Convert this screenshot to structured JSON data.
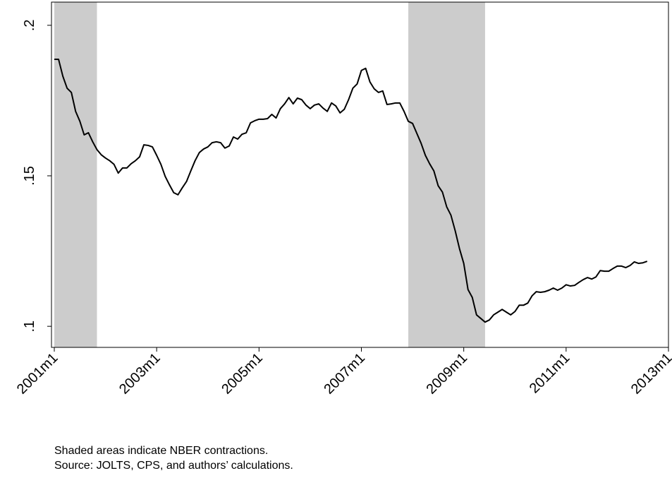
{
  "chart_data": {
    "type": "line",
    "caption": [
      "Shaded areas indicate NBER contractions.",
      "Source: JOLTS, CPS, and authors’ calculations."
    ],
    "recessions": [
      {
        "start": "2001m1",
        "end": "2001m11"
      },
      {
        "start": "2007m12",
        "end": "2009m6"
      }
    ],
    "x": [
      "2001m1",
      "2001m2",
      "2001m3",
      "2001m4",
      "2001m5",
      "2001m6",
      "2001m7",
      "2001m8",
      "2001m9",
      "2001m10",
      "2001m11",
      "2001m12",
      "2002m1",
      "2002m2",
      "2002m3",
      "2002m4",
      "2002m5",
      "2002m6",
      "2002m7",
      "2002m8",
      "2002m9",
      "2002m10",
      "2002m11",
      "2002m12",
      "2003m1",
      "2003m2",
      "2003m3",
      "2003m4",
      "2003m5",
      "2003m6",
      "2003m7",
      "2003m8",
      "2003m9",
      "2003m10",
      "2003m11",
      "2003m12",
      "2004m1",
      "2004m2",
      "2004m3",
      "2004m4",
      "2004m5",
      "2004m6",
      "2004m7",
      "2004m8",
      "2004m9",
      "2004m10",
      "2004m11",
      "2004m12",
      "2005m1",
      "2005m2",
      "2005m3",
      "2005m4",
      "2005m5",
      "2005m6",
      "2005m7",
      "2005m8",
      "2005m9",
      "2005m10",
      "2005m11",
      "2005m12",
      "2006m1",
      "2006m2",
      "2006m3",
      "2006m4",
      "2006m5",
      "2006m6",
      "2006m7",
      "2006m8",
      "2006m9",
      "2006m10",
      "2006m11",
      "2006m12",
      "2007m1",
      "2007m2",
      "2007m3",
      "2007m4",
      "2007m5",
      "2007m6",
      "2007m7",
      "2007m8",
      "2007m9",
      "2007m10",
      "2007m11",
      "2007m12",
      "2008m1",
      "2008m2",
      "2008m3",
      "2008m4",
      "2008m5",
      "2008m6",
      "2008m7",
      "2008m8",
      "2008m9",
      "2008m10",
      "2008m11",
      "2008m12",
      "2009m1",
      "2009m2",
      "2009m3",
      "2009m4",
      "2009m5",
      "2009m6",
      "2009m7",
      "2009m8",
      "2009m9",
      "2009m10",
      "2009m11",
      "2009m12",
      "2010m1",
      "2010m2",
      "2010m3",
      "2010m4",
      "2010m5",
      "2010m6",
      "2010m7",
      "2010m8",
      "2010m9",
      "2010m10",
      "2010m11",
      "2010m12",
      "2011m1",
      "2011m2",
      "2011m3",
      "2011m4",
      "2011m5",
      "2011m6",
      "2011m7",
      "2011m8",
      "2011m9",
      "2011m10",
      "2011m11",
      "2011m12",
      "2012m1",
      "2012m2",
      "2012m3",
      "2012m4",
      "2012m5",
      "2012m6",
      "2012m7",
      "2012m8"
    ],
    "values": [
      0.1887,
      0.1887,
      0.1831,
      0.1791,
      0.1777,
      0.1714,
      0.1681,
      0.1636,
      0.1643,
      0.1613,
      0.1587,
      0.157,
      0.1559,
      0.155,
      0.1538,
      0.1509,
      0.1526,
      0.1526,
      0.154,
      0.155,
      0.1563,
      0.1603,
      0.1601,
      0.1596,
      0.1568,
      0.1538,
      0.1498,
      0.147,
      0.1444,
      0.1437,
      0.146,
      0.1481,
      0.1516,
      0.155,
      0.1577,
      0.1589,
      0.1596,
      0.161,
      0.1613,
      0.161,
      0.1592,
      0.1599,
      0.1629,
      0.1622,
      0.1638,
      0.1643,
      0.1676,
      0.1683,
      0.1688,
      0.1688,
      0.169,
      0.1704,
      0.1692,
      0.1723,
      0.1739,
      0.176,
      0.1739,
      0.1758,
      0.1753,
      0.1735,
      0.1723,
      0.1735,
      0.1739,
      0.1725,
      0.1714,
      0.1742,
      0.1732,
      0.1709,
      0.1721,
      0.1753,
      0.1791,
      0.1805,
      0.185,
      0.1857,
      0.1812,
      0.1789,
      0.1777,
      0.1782,
      0.1737,
      0.1739,
      0.1742,
      0.1742,
      0.1714,
      0.1681,
      0.1674,
      0.1641,
      0.1608,
      0.1568,
      0.154,
      0.1516,
      0.1467,
      0.1446,
      0.1397,
      0.1369,
      0.1317,
      0.1258,
      0.1209,
      0.1122,
      0.1096,
      0.1038,
      0.1026,
      0.1014,
      0.1021,
      0.1038,
      0.1047,
      0.1056,
      0.1047,
      0.1038,
      0.1049,
      0.107,
      0.107,
      0.1077,
      0.1101,
      0.1115,
      0.1113,
      0.1115,
      0.112,
      0.1127,
      0.112,
      0.1127,
      0.1138,
      0.1134,
      0.1136,
      0.1146,
      0.1155,
      0.1162,
      0.1157,
      0.1164,
      0.1185,
      0.1183,
      0.1183,
      0.1192,
      0.12,
      0.12,
      0.1195,
      0.1202,
      0.1214,
      0.1209,
      0.1211,
      0.1216
    ],
    "color": "#000000",
    "recession_color": "#cccccc",
    "xlim": [
      "2001m1",
      "2013m1"
    ],
    "xticks": [
      "2001m1",
      "2003m1",
      "2005m1",
      "2007m1",
      "2009m1",
      "2011m1",
      "2013m1"
    ],
    "ylim": [
      0.093,
      0.2077
    ],
    "yticks": [
      {
        "value": 0.1,
        "label": ".1"
      },
      {
        "value": 0.15,
        "label": ".15"
      },
      {
        "value": 0.2,
        "label": ".2"
      }
    ]
  }
}
